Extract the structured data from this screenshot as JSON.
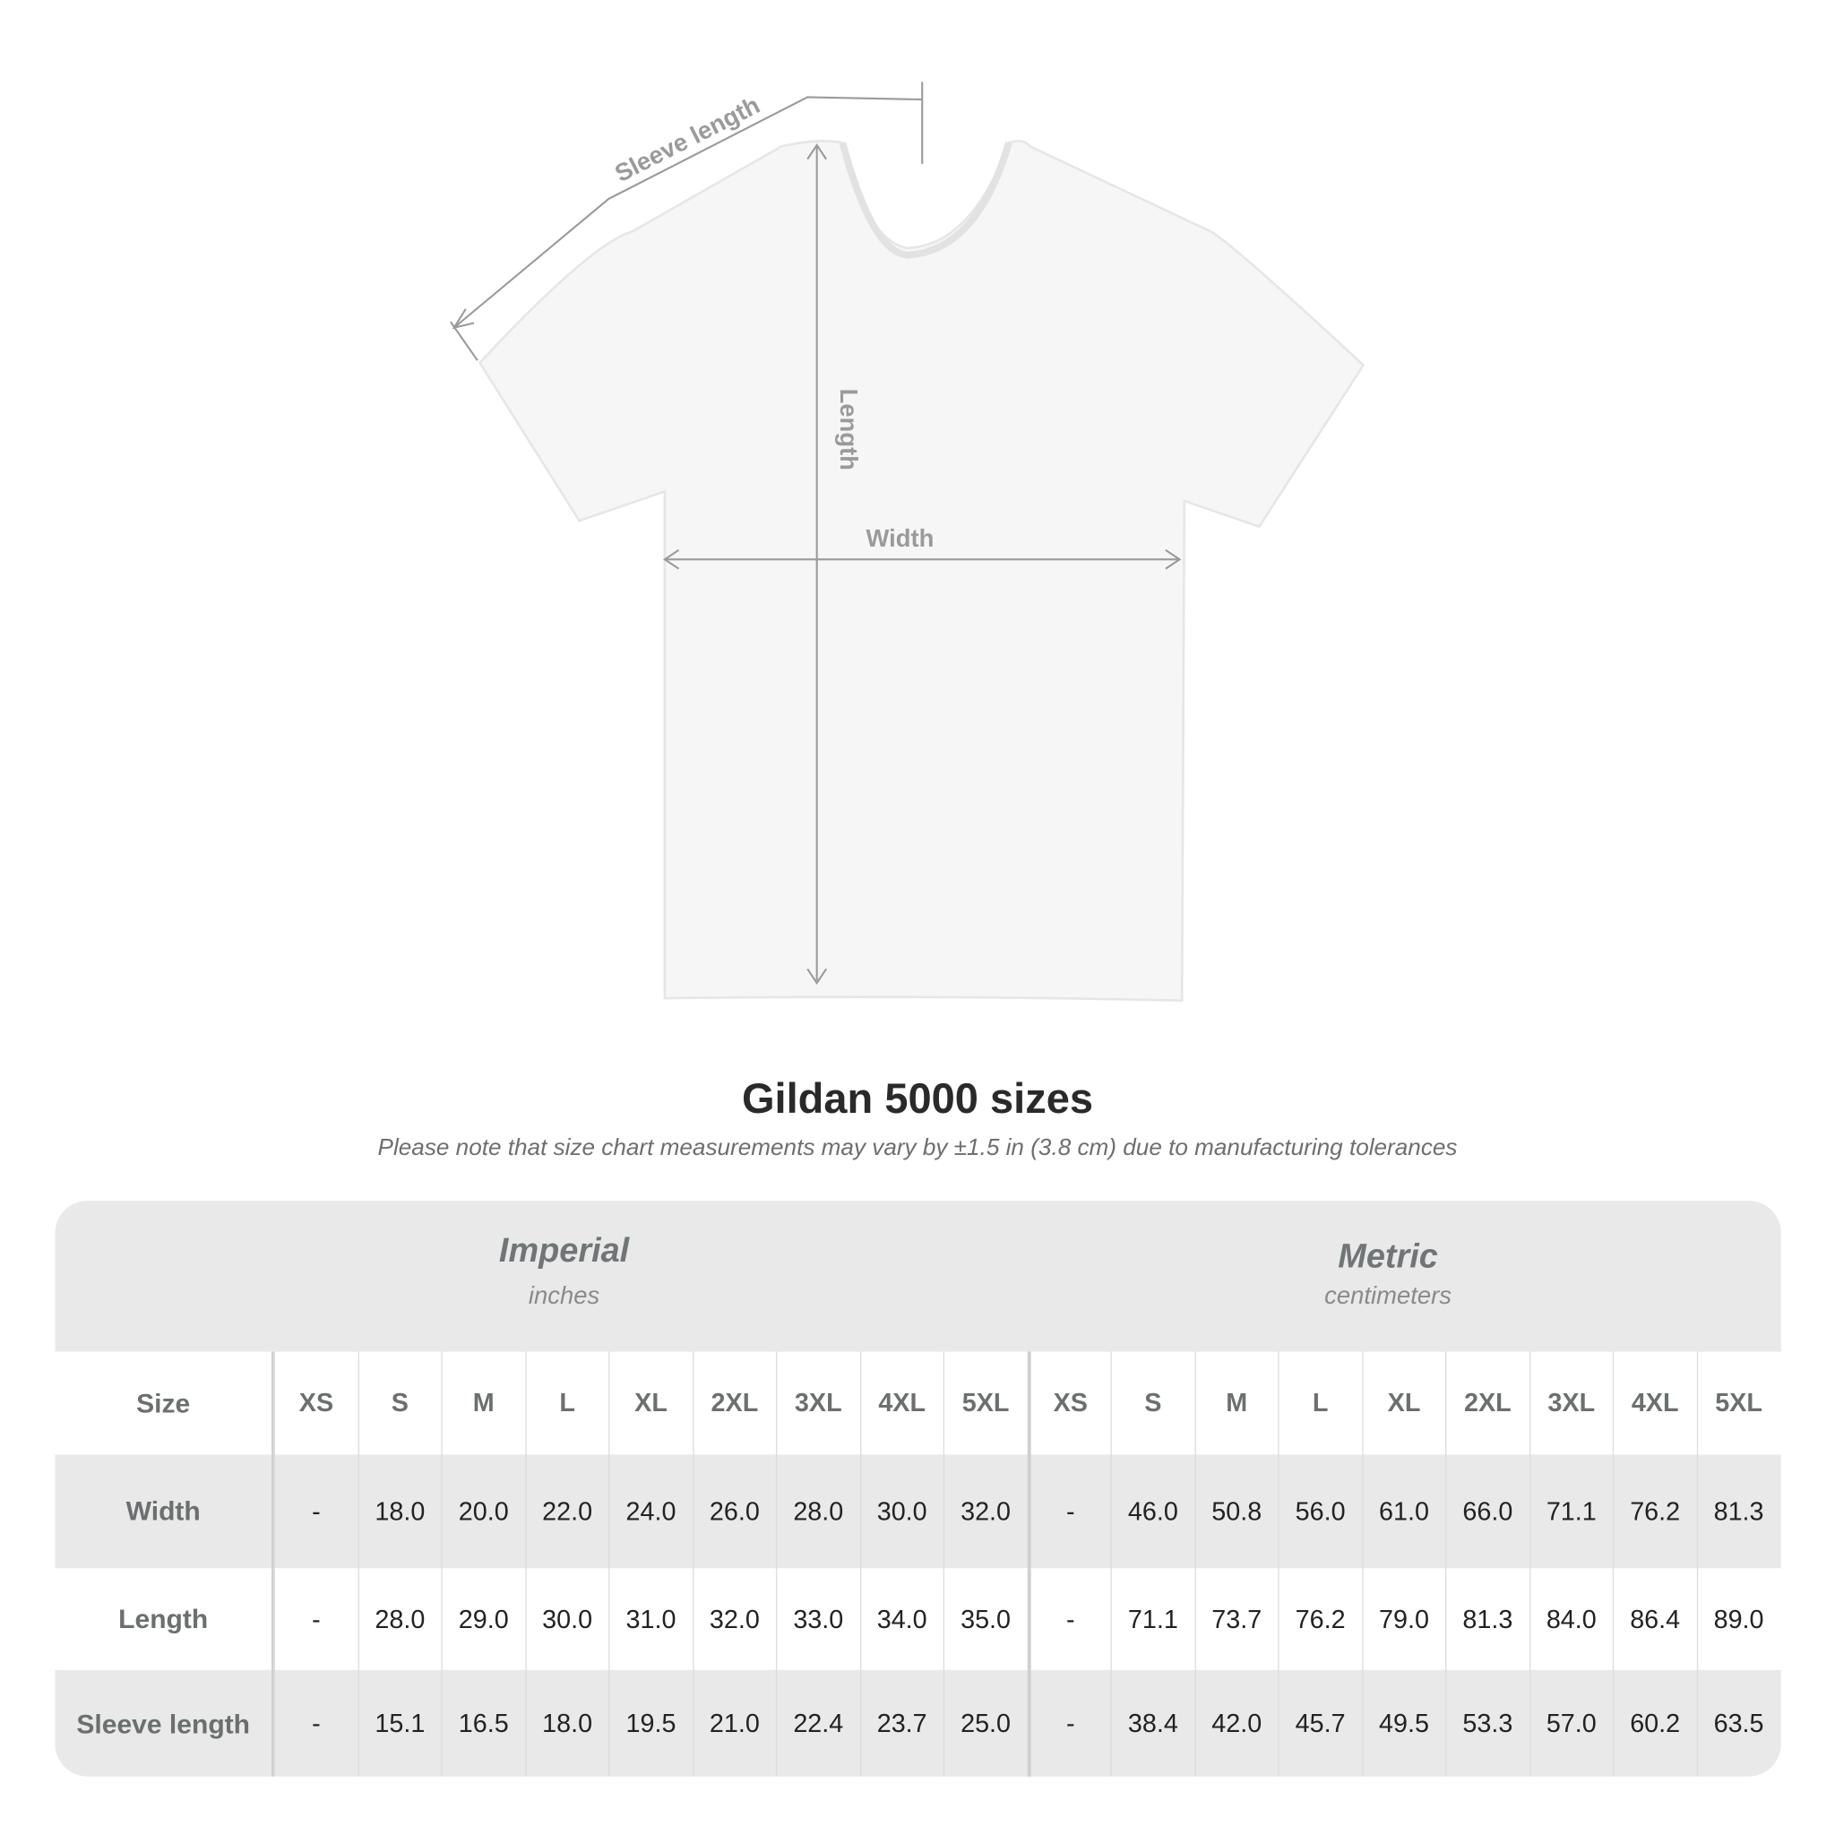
{
  "illustration": {
    "labels": {
      "sleeve_length": "Sleeve length",
      "length": "Length",
      "width": "Width"
    }
  },
  "title": "Gildan 5000 sizes",
  "subtitle": "Please note that size chart measurements may vary by ±1.5 in (3.8 cm) due to manufacturing tolerances",
  "table": {
    "systems": [
      {
        "name": "Imperial",
        "unit": "inches"
      },
      {
        "name": "Metric",
        "unit": "centimeters"
      }
    ],
    "size_label": "Size",
    "sizes": [
      "XS",
      "S",
      "M",
      "L",
      "XL",
      "2XL",
      "3XL",
      "4XL",
      "5XL"
    ],
    "rows": [
      {
        "label": "Width",
        "imperial": [
          "-",
          "18.0",
          "20.0",
          "22.0",
          "24.0",
          "26.0",
          "28.0",
          "30.0",
          "32.0"
        ],
        "metric": [
          "-",
          "46.0",
          "50.8",
          "56.0",
          "61.0",
          "66.0",
          "71.1",
          "76.2",
          "81.3"
        ]
      },
      {
        "label": "Length",
        "imperial": [
          "-",
          "28.0",
          "29.0",
          "30.0",
          "31.0",
          "32.0",
          "33.0",
          "34.0",
          "35.0"
        ],
        "metric": [
          "-",
          "71.1",
          "73.7",
          "76.2",
          "79.0",
          "81.3",
          "84.0",
          "86.4",
          "89.0"
        ]
      },
      {
        "label": "Sleeve length",
        "imperial": [
          "-",
          "15.1",
          "16.5",
          "18.0",
          "19.5",
          "21.0",
          "22.4",
          "23.7",
          "25.0"
        ],
        "metric": [
          "-",
          "38.4",
          "42.0",
          "45.7",
          "49.5",
          "53.3",
          "57.0",
          "60.2",
          "63.5"
        ]
      }
    ]
  },
  "colors": {
    "band": "#e9e9e9",
    "label_text": "#6b6f70",
    "value_text": "#222222",
    "guide_lines": "#9a9a9a"
  }
}
